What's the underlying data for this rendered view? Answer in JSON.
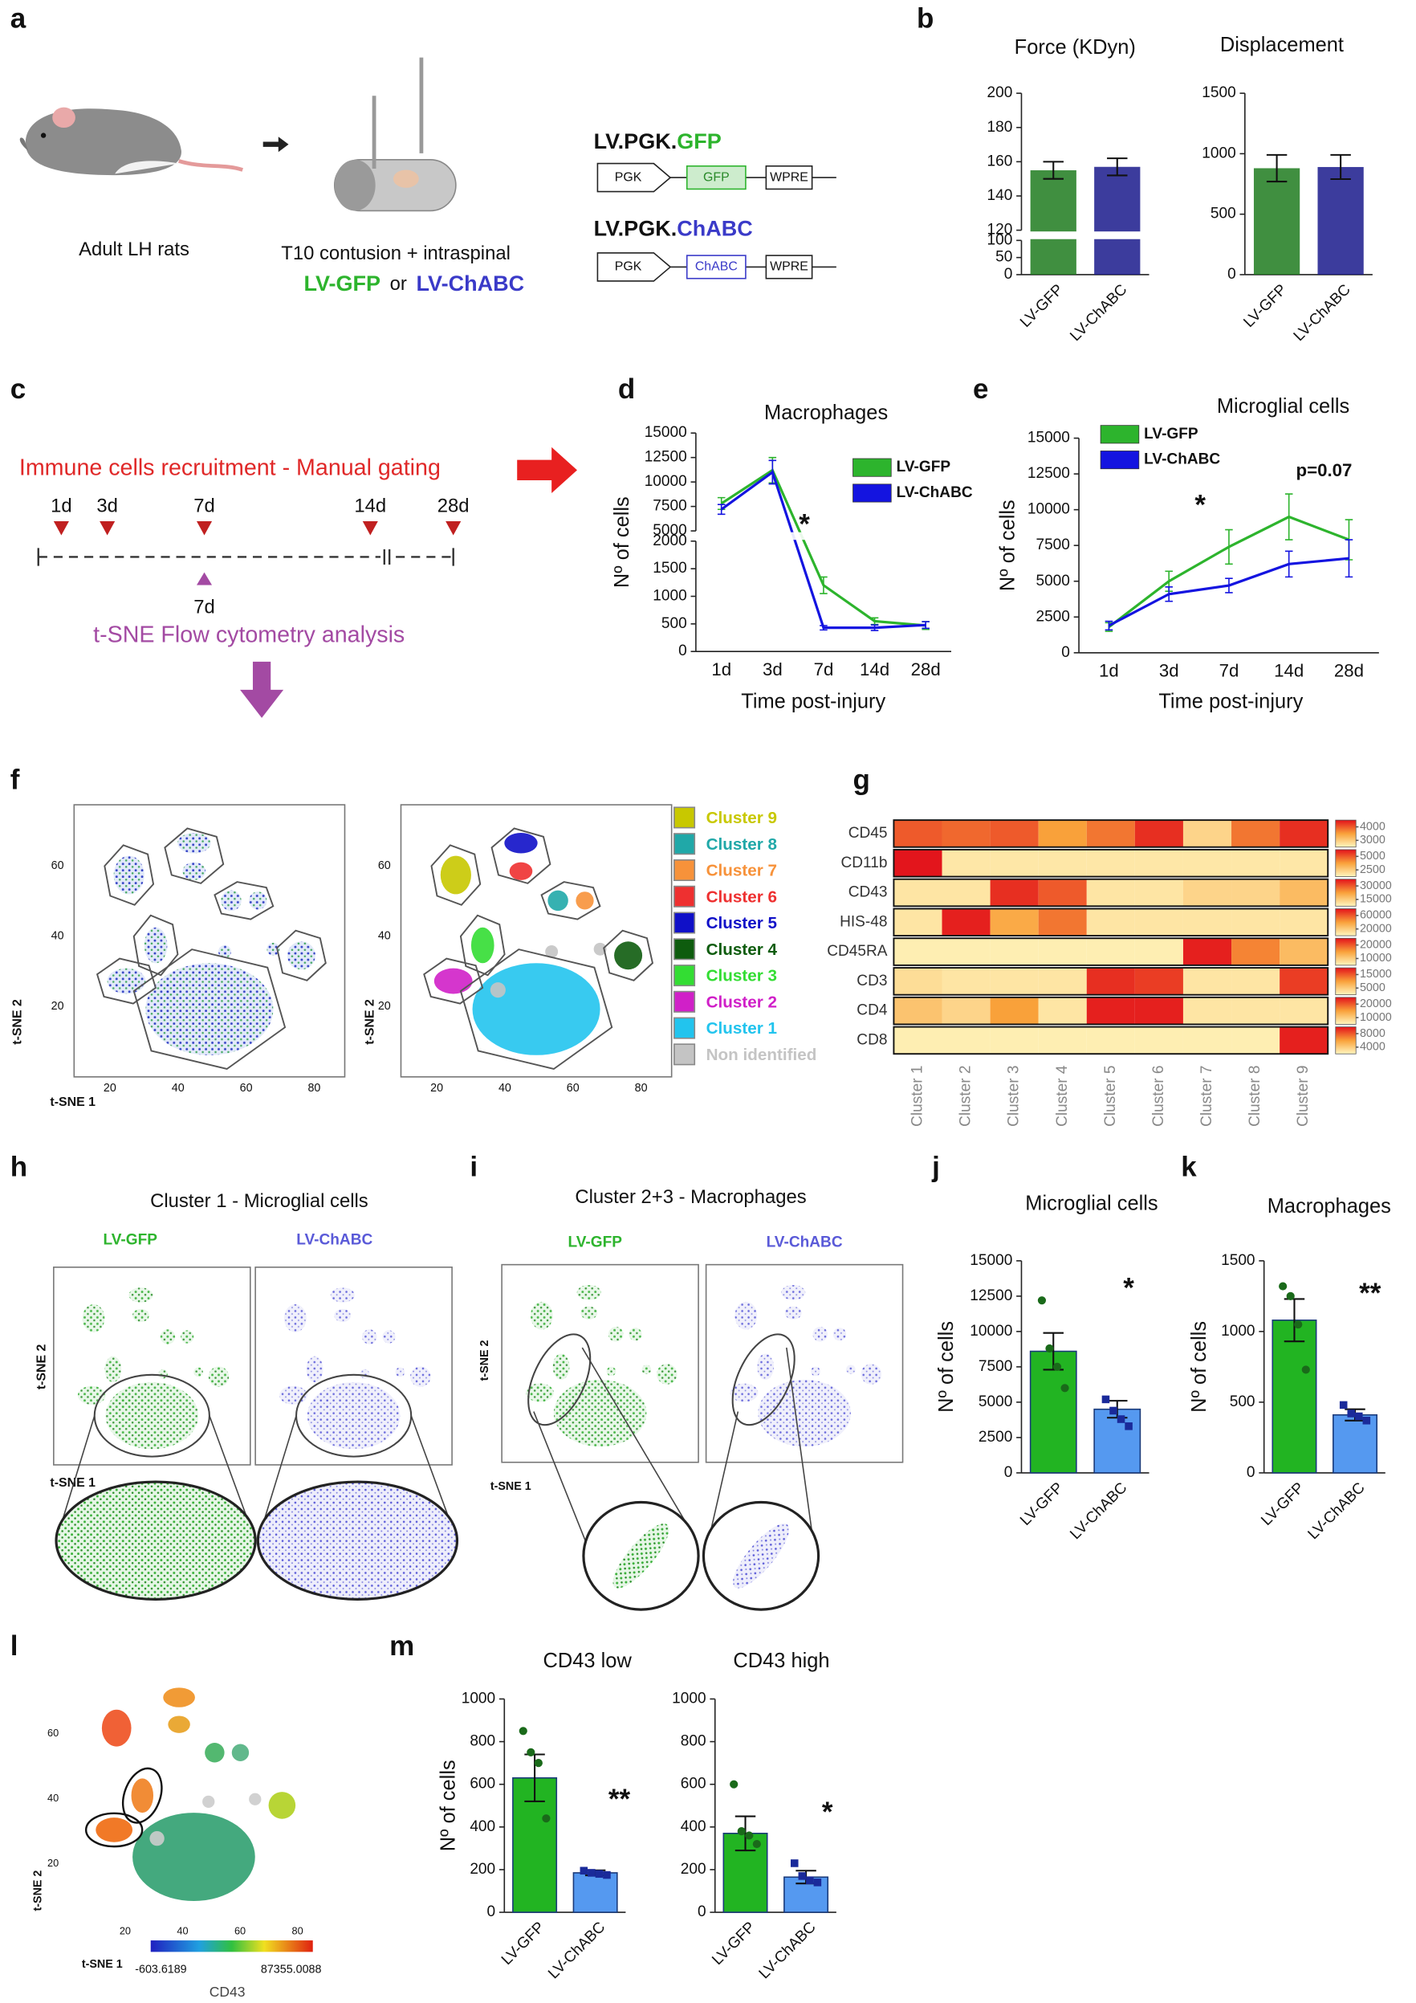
{
  "panel_letters": [
    "a",
    "b",
    "c",
    "d",
    "e",
    "f",
    "g",
    "h",
    "i",
    "j",
    "k",
    "l",
    "m"
  ],
  "panel_a": {
    "animal": "Adult LH rats",
    "procedure": "T10 contusion + intraspinal",
    "groups": [
      "LV-GFP",
      "or",
      "LV-ChABC"
    ],
    "constructs": [
      {
        "prefix": "LV.PGK.",
        "name": "GFP",
        "elements": [
          "PGK",
          "GFP",
          "WPRE"
        ]
      },
      {
        "prefix": "LV.PGK.",
        "name": "ChABC",
        "elements": [
          "PGK",
          "ChABC",
          "WPRE"
        ]
      }
    ]
  },
  "panel_c": {
    "gating": "Immune cells recruitment - Manual gating",
    "timepoints": [
      "1d",
      "3d",
      "7d",
      "14d",
      "28d"
    ],
    "tsne_timepoint": "7d",
    "tsne": "t-SNE Flow cytometry analysis"
  },
  "panel_f": {
    "xlabel": "t-SNE 1",
    "ylabel": "t-SNE 2",
    "xticks": [
      20,
      40,
      60,
      80
    ],
    "yticks": [
      20,
      40,
      60
    ],
    "clusters": [
      {
        "name": "Cluster 9",
        "color": "#c8c800"
      },
      {
        "name": "Cluster 8",
        "color": "#20a8a8"
      },
      {
        "name": "Cluster 7",
        "color": "#f7923a"
      },
      {
        "name": "Cluster 6",
        "color": "#ee3030"
      },
      {
        "name": "Cluster 5",
        "color": "#1010c8"
      },
      {
        "name": "Cluster 4",
        "color": "#0e5c0e"
      },
      {
        "name": "Cluster 3",
        "color": "#33dd33"
      },
      {
        "name": "Cluster 2",
        "color": "#d020c8"
      },
      {
        "name": "Cluster 1",
        "color": "#22c4ee"
      },
      {
        "name": "Non identified",
        "color": "#c4c4c4"
      }
    ]
  },
  "panel_h": {
    "title": "Cluster 1 - Microglial cells",
    "groups": [
      "LV-GFP",
      "LV-ChABC"
    ],
    "xlabel": "t-SNE 1",
    "ylabel": "t-SNE 2"
  },
  "panel_i": {
    "title": "Cluster 2+3 - Macrophages",
    "groups": [
      "LV-GFP",
      "LV-ChABC"
    ],
    "xlabel": "t-SNE 1",
    "ylabel": "t-SNE 2"
  },
  "panel_l": {
    "xlabel": "t-SNE 1",
    "ylabel": "t-SNE 2",
    "xticks": [
      20,
      40,
      60,
      80
    ],
    "yticks": [
      20,
      40,
      60
    ],
    "colorbar": {
      "label": "CD43",
      "min": -603.6189,
      "max": 87355.0088
    }
  },
  "chart_data": [
    {
      "type": "bar",
      "title": "Force (KDyn)",
      "categories": [
        "LV-GFP",
        "LV-ChABC"
      ],
      "values": [
        155,
        157
      ],
      "errors": [
        5,
        5
      ],
      "colors": [
        "#1e7b1e",
        "#1a1a8c"
      ],
      "ylim": [
        0,
        200
      ],
      "ybreak": [
        100,
        120
      ],
      "yticks": [
        0,
        50,
        100,
        120,
        140,
        160,
        180,
        200
      ]
    },
    {
      "type": "bar",
      "title": "Displacement",
      "categories": [
        "LV-GFP",
        "LV-ChABC"
      ],
      "values": [
        880,
        890
      ],
      "errors": [
        110,
        100
      ],
      "colors": [
        "#1e7b1e",
        "#1a1a8c"
      ],
      "ylim": [
        0,
        1500
      ],
      "yticks": [
        0,
        500,
        1000,
        1500
      ]
    },
    {
      "type": "line",
      "title": "Macrophages",
      "ylabel": "Nº of cells",
      "xlabel": "Time post-injury",
      "categories": [
        "1d",
        "3d",
        "7d",
        "14d",
        "28d"
      ],
      "series": [
        {
          "name": "LV-GFP",
          "color": "#2db42d",
          "values": [
            7800,
            11200,
            1200,
            550,
            470
          ],
          "errors": [
            600,
            1300,
            150,
            60,
            70
          ]
        },
        {
          "name": "LV-ChABC",
          "color": "#1414e0",
          "values": [
            7200,
            11000,
            430,
            430,
            480
          ],
          "errors": [
            500,
            1200,
            40,
            50,
            60
          ]
        }
      ],
      "ylim": [
        0,
        15000
      ],
      "ybreak": [
        2000,
        5000
      ],
      "yticks": [
        0,
        500,
        1000,
        1500,
        2000,
        5000,
        7500,
        10000,
        12500,
        15000
      ],
      "legend": "upper right",
      "annotations": [
        "*"
      ]
    },
    {
      "type": "line",
      "title": "Microglial cells",
      "ylabel": "Nº of cells",
      "xlabel": "Time post-injury",
      "categories": [
        "1d",
        "3d",
        "7d",
        "14d",
        "28d"
      ],
      "series": [
        {
          "name": "LV-GFP",
          "color": "#2db42d",
          "values": [
            1800,
            5000,
            7400,
            9500,
            7900
          ],
          "errors": [
            300,
            700,
            1200,
            1600,
            1400
          ]
        },
        {
          "name": "LV-ChABC",
          "color": "#1414e0",
          "values": [
            1900,
            4100,
            4700,
            6200,
            6600
          ],
          "errors": [
            300,
            500,
            500,
            900,
            1300
          ]
        }
      ],
      "ylim": [
        0,
        15000
      ],
      "yticks": [
        0,
        2500,
        5000,
        7500,
        10000,
        12500,
        15000
      ],
      "legend": "upper left",
      "annotations": [
        "*",
        "p=0.07"
      ]
    },
    {
      "type": "heatmap",
      "rows": [
        "CD45",
        "CD11b",
        "CD43",
        "HIS-48",
        "CD45RA",
        "CD3",
        "CD4",
        "CD8"
      ],
      "columns": [
        "Cluster 1",
        "Cluster 2",
        "Cluster 3",
        "Cluster 4",
        "Cluster 5",
        "Cluster 6",
        "Cluster 7",
        "Cluster 8",
        "Cluster 9"
      ],
      "values": [
        [
          4000,
          3900,
          4000,
          3500,
          3800,
          4300,
          2900,
          3800,
          4300
        ],
        [
          6200,
          1700,
          1700,
          1700,
          1700,
          1700,
          1700,
          1700,
          1700
        ],
        [
          10500,
          10500,
          34500,
          30000,
          10500,
          10500,
          13500,
          13500,
          18000
        ],
        [
          8000,
          76000,
          36000,
          52000,
          8000,
          8000,
          8000,
          8000,
          8000
        ],
        [
          6000,
          6000,
          6000,
          6000,
          6000,
          6000,
          24000,
          17000,
          12000
        ],
        [
          3000,
          2000,
          2000,
          2000,
          18000,
          17000,
          2000,
          2000,
          17000
        ],
        [
          11000,
          9000,
          15000,
          7000,
          24000,
          24000,
          7000,
          7000,
          7000
        ],
        [
          2400,
          2400,
          2400,
          2400,
          2400,
          2400,
          2400,
          2400,
          9600
        ]
      ],
      "row_lims": [
        [
          2500,
          4500
        ],
        [
          1250,
          6250
        ],
        [
          7500,
          37500
        ],
        [
          0,
          80000
        ],
        [
          5000,
          25000
        ],
        [
          0,
          20000
        ],
        [
          5000,
          25000
        ],
        [
          2000,
          10000
        ]
      ],
      "row_ticks": [
        [
          3000,
          4000
        ],
        [
          2500,
          5000
        ],
        [
          15000,
          30000
        ],
        [
          20000,
          60000
        ],
        [
          10000,
          20000
        ],
        [
          5000,
          15000
        ],
        [
          10000,
          20000
        ],
        [
          4000,
          8000
        ]
      ],
      "colors": [
        "#fff6bf",
        "#f9a13a",
        "#e3121b"
      ]
    },
    {
      "type": "bar",
      "title": "Microglial cells",
      "ylabel": "Nº of cells",
      "categories": [
        "LV-GFP",
        "LV-ChABC"
      ],
      "values": [
        8600,
        4500
      ],
      "errors": [
        1300,
        600
      ],
      "points": [
        [
          12200,
          8800,
          7500,
          6000
        ],
        [
          5200,
          4400,
          3800,
          3300
        ]
      ],
      "markers": [
        "circle",
        "square"
      ],
      "colors": [
        "#22b422",
        "#5599f0"
      ],
      "ylim": [
        0,
        15000
      ],
      "yticks": [
        0,
        2500,
        5000,
        7500,
        10000,
        12500,
        15000
      ],
      "annotations": [
        "*"
      ]
    },
    {
      "type": "bar",
      "title": "Macrophages",
      "ylabel": "Nº of cells",
      "categories": [
        "LV-GFP",
        "LV-ChABC"
      ],
      "values": [
        1080,
        410
      ],
      "errors": [
        150,
        40
      ],
      "points": [
        [
          1320,
          1250,
          1050,
          730
        ],
        [
          480,
          420,
          400,
          370
        ]
      ],
      "markers": [
        "circle",
        "square"
      ],
      "colors": [
        "#22b422",
        "#5599f0"
      ],
      "ylim": [
        0,
        1500
      ],
      "yticks": [
        0,
        500,
        1000,
        1500
      ],
      "annotations": [
        "**"
      ]
    },
    {
      "type": "bar",
      "title": "CD43 low",
      "ylabel": "Nº of cells",
      "categories": [
        "LV-GFP",
        "LV-ChABC"
      ],
      "values": [
        630,
        185
      ],
      "errors": [
        110,
        12
      ],
      "points": [
        [
          850,
          750,
          700,
          440
        ],
        [
          195,
          185,
          180,
          175
        ]
      ],
      "markers": [
        "circle",
        "square"
      ],
      "colors": [
        "#22b422",
        "#5599f0"
      ],
      "ylim": [
        0,
        1000
      ],
      "yticks": [
        0,
        200,
        400,
        600,
        800,
        1000
      ],
      "annotations": [
        "**"
      ]
    },
    {
      "type": "bar",
      "title": "CD43 high",
      "categories": [
        "LV-GFP",
        "LV-ChABC"
      ],
      "values": [
        370,
        165
      ],
      "errors": [
        80,
        30
      ],
      "points": [
        [
          600,
          380,
          360,
          320
        ],
        [
          230,
          170,
          150,
          140
        ]
      ],
      "markers": [
        "circle",
        "square"
      ],
      "colors": [
        "#22b422",
        "#5599f0"
      ],
      "ylim": [
        0,
        1000
      ],
      "yticks": [
        0,
        200,
        400,
        600,
        800,
        1000
      ],
      "annotations": [
        "*"
      ]
    }
  ]
}
